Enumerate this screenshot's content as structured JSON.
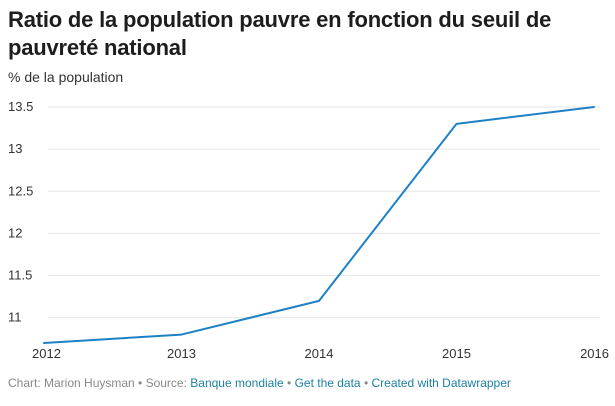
{
  "title": "Ratio de la population pauvre en fonction du seuil de pauvreté national",
  "subtitle": "% de la population",
  "footer": {
    "prefix": "Chart: Marion Huysman • Source: ",
    "source_link": "Banque mondiale",
    "sep1": " • ",
    "get_data": "Get the data",
    "sep2": " • ",
    "created_with": "Created with Datawrapper"
  },
  "colors": {
    "line": "#1d81c4",
    "grid": "#e6e6e6",
    "axis_text": "#333333"
  },
  "chart_data": {
    "type": "line",
    "title": "Ratio de la population pauvre en fonction du seuil de pauvreté national",
    "ylabel": "% de la population",
    "xlabel": "",
    "x": [
      "2012",
      "2013",
      "2014",
      "2015",
      "2016"
    ],
    "series": [
      {
        "name": "Ratio de la population pauvre",
        "values": [
          10.7,
          10.8,
          11.2,
          13.3,
          13.5
        ]
      }
    ],
    "yticks": [
      "11",
      "11.5",
      "12",
      "12.5",
      "13",
      "13.5"
    ],
    "ylim": [
      10.7,
      13.5
    ],
    "grid": true
  }
}
